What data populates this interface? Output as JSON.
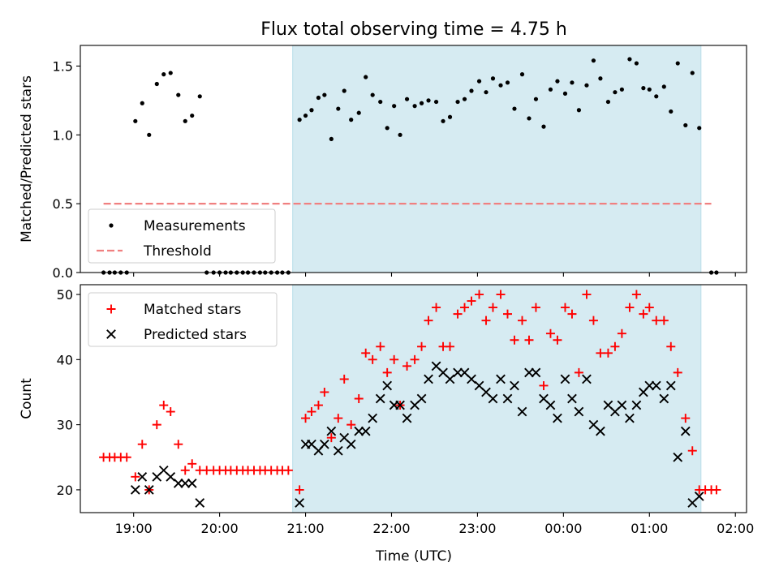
{
  "title": "Flux total observing time = 4.75 h",
  "xlabel": "Time (UTC)",
  "chart_data": [
    {
      "type": "scatter",
      "panel": "top",
      "ylabel": "Matched/Predicted stars",
      "x_unit": "hours since 00:00 (times after midnight > 24)",
      "xlim": [
        18.38,
        26.13
      ],
      "ylim": [
        0,
        1.65
      ],
      "yticks": [
        0.0,
        0.5,
        1.0,
        1.5
      ],
      "yticklabels": [
        "0.0",
        "0.5",
        "1.0",
        "1.5"
      ],
      "shaded_span": [
        20.85,
        25.6
      ],
      "legend_loc": "lower left",
      "legend": [
        "Measurements",
        "Threshold"
      ],
      "threshold": {
        "name": "Threshold",
        "y": 0.5,
        "x": [
          18.65,
          25.72
        ],
        "color": "#f08080"
      },
      "series": [
        {
          "name": "Measurements",
          "color": "#000000",
          "points": [
            [
              18.65,
              0
            ],
            [
              18.72,
              0
            ],
            [
              18.78,
              0
            ],
            [
              18.85,
              0
            ],
            [
              18.92,
              0
            ],
            [
              19.02,
              1.1
            ],
            [
              19.1,
              1.23
            ],
            [
              19.18,
              1.0
            ],
            [
              19.27,
              1.37
            ],
            [
              19.35,
              1.44
            ],
            [
              19.43,
              1.45
            ],
            [
              19.52,
              1.29
            ],
            [
              19.6,
              1.1
            ],
            [
              19.68,
              1.14
            ],
            [
              19.77,
              1.28
            ],
            [
              19.85,
              0
            ],
            [
              19.93,
              0
            ],
            [
              20.0,
              0
            ],
            [
              20.07,
              0
            ],
            [
              20.13,
              0
            ],
            [
              20.2,
              0
            ],
            [
              20.27,
              0
            ],
            [
              20.33,
              0
            ],
            [
              20.4,
              0
            ],
            [
              20.47,
              0
            ],
            [
              20.53,
              0
            ],
            [
              20.6,
              0
            ],
            [
              20.67,
              0
            ],
            [
              20.73,
              0
            ],
            [
              20.8,
              0
            ],
            [
              20.93,
              1.11
            ],
            [
              21.0,
              1.14
            ],
            [
              21.07,
              1.18
            ],
            [
              21.15,
              1.27
            ],
            [
              21.22,
              1.29
            ],
            [
              21.3,
              0.97
            ],
            [
              21.38,
              1.19
            ],
            [
              21.45,
              1.32
            ],
            [
              21.53,
              1.11
            ],
            [
              21.62,
              1.16
            ],
            [
              21.7,
              1.42
            ],
            [
              21.78,
              1.29
            ],
            [
              21.87,
              1.24
            ],
            [
              21.95,
              1.05
            ],
            [
              22.03,
              1.21
            ],
            [
              22.1,
              1.0
            ],
            [
              22.18,
              1.26
            ],
            [
              22.27,
              1.21
            ],
            [
              22.35,
              1.23
            ],
            [
              22.43,
              1.25
            ],
            [
              22.52,
              1.24
            ],
            [
              22.6,
              1.1
            ],
            [
              22.68,
              1.13
            ],
            [
              22.77,
              1.24
            ],
            [
              22.85,
              1.26
            ],
            [
              22.93,
              1.32
            ],
            [
              23.02,
              1.39
            ],
            [
              23.1,
              1.31
            ],
            [
              23.18,
              1.41
            ],
            [
              23.27,
              1.36
            ],
            [
              23.35,
              1.38
            ],
            [
              23.43,
              1.19
            ],
            [
              23.52,
              1.44
            ],
            [
              23.6,
              1.12
            ],
            [
              23.68,
              1.26
            ],
            [
              23.77,
              1.06
            ],
            [
              23.85,
              1.33
            ],
            [
              23.93,
              1.39
            ],
            [
              24.02,
              1.3
            ],
            [
              24.1,
              1.38
            ],
            [
              24.18,
              1.18
            ],
            [
              24.27,
              1.36
            ],
            [
              24.35,
              1.54
            ],
            [
              24.43,
              1.41
            ],
            [
              24.52,
              1.24
            ],
            [
              24.6,
              1.31
            ],
            [
              24.68,
              1.33
            ],
            [
              24.77,
              1.55
            ],
            [
              24.85,
              1.52
            ],
            [
              24.93,
              1.34
            ],
            [
              25.0,
              1.33
            ],
            [
              25.08,
              1.28
            ],
            [
              25.17,
              1.35
            ],
            [
              25.25,
              1.17
            ],
            [
              25.33,
              1.52
            ],
            [
              25.42,
              1.07
            ],
            [
              25.5,
              1.45
            ],
            [
              25.58,
              1.05
            ],
            [
              25.72,
              0
            ],
            [
              25.78,
              0
            ]
          ]
        }
      ]
    },
    {
      "type": "scatter",
      "panel": "bottom",
      "ylabel": "Count",
      "x_unit": "hours since 00:00 (times after midnight > 24)",
      "xlim": [
        18.38,
        26.13
      ],
      "ylim": [
        16.5,
        51.5
      ],
      "yticks": [
        20,
        30,
        40,
        50
      ],
      "yticklabels": [
        "20",
        "30",
        "40",
        "50"
      ],
      "xticks": [
        19,
        20,
        21,
        22,
        23,
        24,
        25,
        26
      ],
      "xticklabels": [
        "19:00",
        "20:00",
        "21:00",
        "22:00",
        "23:00",
        "00:00",
        "01:00",
        "02:00"
      ],
      "shaded_span": [
        20.85,
        25.6
      ],
      "legend_loc": "upper left",
      "legend": [
        "Matched stars",
        "Predicted stars"
      ],
      "series": [
        {
          "name": "Matched stars",
          "marker": "plus",
          "color": "#ff0000",
          "points": [
            [
              18.65,
              25
            ],
            [
              18.72,
              25
            ],
            [
              18.78,
              25
            ],
            [
              18.85,
              25
            ],
            [
              18.92,
              25
            ],
            [
              19.02,
              22
            ],
            [
              19.1,
              27
            ],
            [
              19.18,
              20
            ],
            [
              19.27,
              30
            ],
            [
              19.35,
              33
            ],
            [
              19.43,
              32
            ],
            [
              19.52,
              27
            ],
            [
              19.6,
              23
            ],
            [
              19.68,
              24
            ],
            [
              19.77,
              23
            ],
            [
              19.85,
              23
            ],
            [
              19.93,
              23
            ],
            [
              20.0,
              23
            ],
            [
              20.07,
              23
            ],
            [
              20.13,
              23
            ],
            [
              20.2,
              23
            ],
            [
              20.27,
              23
            ],
            [
              20.33,
              23
            ],
            [
              20.4,
              23
            ],
            [
              20.47,
              23
            ],
            [
              20.53,
              23
            ],
            [
              20.6,
              23
            ],
            [
              20.67,
              23
            ],
            [
              20.73,
              23
            ],
            [
              20.8,
              23
            ],
            [
              20.93,
              20
            ],
            [
              21.0,
              31
            ],
            [
              21.07,
              32
            ],
            [
              21.15,
              33
            ],
            [
              21.22,
              35
            ],
            [
              21.3,
              28
            ],
            [
              21.38,
              31
            ],
            [
              21.45,
              37
            ],
            [
              21.53,
              30
            ],
            [
              21.62,
              34
            ],
            [
              21.7,
              41
            ],
            [
              21.78,
              40
            ],
            [
              21.87,
              42
            ],
            [
              21.95,
              38
            ],
            [
              22.03,
              40
            ],
            [
              22.1,
              33
            ],
            [
              22.18,
              39
            ],
            [
              22.27,
              40
            ],
            [
              22.35,
              42
            ],
            [
              22.43,
              46
            ],
            [
              22.52,
              48
            ],
            [
              22.6,
              42
            ],
            [
              22.68,
              42
            ],
            [
              22.77,
              47
            ],
            [
              22.85,
              48
            ],
            [
              22.93,
              49
            ],
            [
              23.02,
              50
            ],
            [
              23.1,
              46
            ],
            [
              23.18,
              48
            ],
            [
              23.27,
              50
            ],
            [
              23.35,
              47
            ],
            [
              23.43,
              43
            ],
            [
              23.52,
              46
            ],
            [
              23.6,
              43
            ],
            [
              23.68,
              48
            ],
            [
              23.77,
              36
            ],
            [
              23.85,
              44
            ],
            [
              23.93,
              43
            ],
            [
              24.02,
              48
            ],
            [
              24.1,
              47
            ],
            [
              24.18,
              38
            ],
            [
              24.27,
              50
            ],
            [
              24.35,
              46
            ],
            [
              24.43,
              41
            ],
            [
              24.52,
              41
            ],
            [
              24.6,
              42
            ],
            [
              24.68,
              44
            ],
            [
              24.77,
              48
            ],
            [
              24.85,
              50
            ],
            [
              24.93,
              47
            ],
            [
              25.0,
              48
            ],
            [
              25.08,
              46
            ],
            [
              25.17,
              46
            ],
            [
              25.25,
              42
            ],
            [
              25.33,
              38
            ],
            [
              25.42,
              31
            ],
            [
              25.5,
              26
            ],
            [
              25.58,
              20
            ],
            [
              25.65,
              20
            ],
            [
              25.72,
              20
            ],
            [
              25.78,
              20
            ]
          ]
        },
        {
          "name": "Predicted stars",
          "marker": "x",
          "color": "#000000",
          "points": [
            [
              19.02,
              20
            ],
            [
              19.1,
              22
            ],
            [
              19.18,
              20
            ],
            [
              19.27,
              22
            ],
            [
              19.35,
              23
            ],
            [
              19.43,
              22
            ],
            [
              19.52,
              21
            ],
            [
              19.6,
              21
            ],
            [
              19.68,
              21
            ],
            [
              19.77,
              18
            ],
            [
              20.93,
              18
            ],
            [
              21.0,
              27
            ],
            [
              21.07,
              27
            ],
            [
              21.15,
              26
            ],
            [
              21.22,
              27
            ],
            [
              21.3,
              29
            ],
            [
              21.38,
              26
            ],
            [
              21.45,
              28
            ],
            [
              21.53,
              27
            ],
            [
              21.62,
              29
            ],
            [
              21.7,
              29
            ],
            [
              21.78,
              31
            ],
            [
              21.87,
              34
            ],
            [
              21.95,
              36
            ],
            [
              22.03,
              33
            ],
            [
              22.1,
              33
            ],
            [
              22.18,
              31
            ],
            [
              22.27,
              33
            ],
            [
              22.35,
              34
            ],
            [
              22.43,
              37
            ],
            [
              22.52,
              39
            ],
            [
              22.6,
              38
            ],
            [
              22.68,
              37
            ],
            [
              22.77,
              38
            ],
            [
              22.85,
              38
            ],
            [
              22.93,
              37
            ],
            [
              23.02,
              36
            ],
            [
              23.1,
              35
            ],
            [
              23.18,
              34
            ],
            [
              23.27,
              37
            ],
            [
              23.35,
              34
            ],
            [
              23.43,
              36
            ],
            [
              23.52,
              32
            ],
            [
              23.6,
              38
            ],
            [
              23.68,
              38
            ],
            [
              23.77,
              34
            ],
            [
              23.85,
              33
            ],
            [
              23.93,
              31
            ],
            [
              24.02,
              37
            ],
            [
              24.1,
              34
            ],
            [
              24.18,
              32
            ],
            [
              24.27,
              37
            ],
            [
              24.35,
              30
            ],
            [
              24.43,
              29
            ],
            [
              24.52,
              33
            ],
            [
              24.6,
              32
            ],
            [
              24.68,
              33
            ],
            [
              24.77,
              31
            ],
            [
              24.85,
              33
            ],
            [
              24.93,
              35
            ],
            [
              25.0,
              36
            ],
            [
              25.08,
              36
            ],
            [
              25.17,
              34
            ],
            [
              25.25,
              36
            ],
            [
              25.33,
              25
            ],
            [
              25.42,
              29
            ],
            [
              25.5,
              18
            ],
            [
              25.58,
              19
            ]
          ]
        }
      ]
    }
  ]
}
